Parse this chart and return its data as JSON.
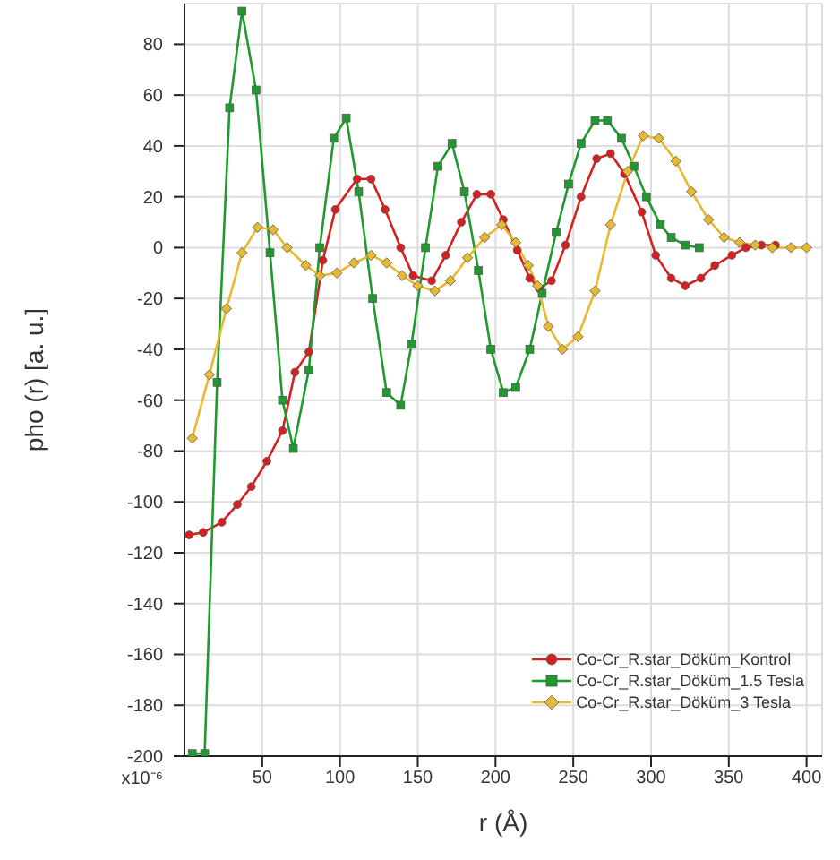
{
  "chart_data": {
    "type": "line",
    "xlabel": "r (Å)",
    "ylabel": "pho (r) [a. u.]",
    "xlim": [
      0,
      410
    ],
    "xticks": [
      50,
      100,
      150,
      200,
      250,
      300,
      350,
      400
    ],
    "annotations": [
      "x10⁻⁶"
    ],
    "ylim": [
      -200,
      96
    ],
    "yticks": [
      -200,
      -180,
      -160,
      -140,
      -120,
      -100,
      -80,
      -60,
      -40,
      -20,
      0,
      20,
      40,
      60,
      80
    ],
    "grid": true,
    "legend": "bottom right",
    "line_style": "solid",
    "series": [
      {
        "name": "Co-Cr_R.star_Döküm_Kontrol",
        "color": "#d62020",
        "marker": "circle",
        "x": [
          3,
          12,
          24,
          34,
          43,
          53,
          63,
          71,
          80,
          89,
          97,
          111,
          120,
          129,
          139,
          147,
          159,
          168,
          178,
          188,
          197,
          205,
          214,
          222,
          228,
          236,
          245,
          255,
          265,
          274,
          283,
          294,
          303,
          313,
          322,
          332,
          341,
          352,
          361,
          371,
          380
        ],
        "values": [
          -113,
          -112,
          -108,
          -101,
          -94,
          -84,
          -72,
          -49,
          -41,
          -5,
          15,
          27,
          27,
          15,
          0,
          -11,
          -13,
          -3,
          10,
          21,
          21,
          11,
          -1,
          -12,
          -16,
          -13,
          1,
          20,
          35,
          37,
          29,
          14,
          -3,
          -12,
          -15,
          -12,
          -7,
          -3,
          0,
          1,
          1
        ]
      },
      {
        "name": "Co-Cr_R.star_Döküm_1.5 Tesla",
        "color": "#1e9a2e",
        "marker": "square",
        "x": [
          5,
          13,
          21,
          29,
          37,
          46,
          55,
          63,
          70,
          80,
          87,
          96,
          104,
          112,
          121,
          130,
          139,
          146,
          155,
          163,
          172,
          180,
          189,
          197,
          205,
          213,
          222,
          230,
          239,
          247,
          255,
          264,
          272,
          281,
          289,
          297,
          306,
          313,
          322,
          331
        ],
        "values": [
          -199,
          -199,
          -53,
          55,
          93,
          62,
          -2,
          -60,
          -79,
          -48,
          0,
          43,
          51,
          22,
          -20,
          -57,
          -62,
          -38,
          0,
          32,
          41,
          22,
          -9,
          -40,
          -57,
          -55,
          -40,
          -18,
          6,
          25,
          41,
          50,
          50,
          43,
          32,
          20,
          9,
          4,
          1,
          0
        ]
      },
      {
        "name": "Co-Cr_R.star_Döküm_3 Tesla",
        "color": "#e8b830",
        "marker": "diamond",
        "x": [
          5,
          16,
          27,
          37,
          47,
          57,
          66,
          78,
          87,
          98,
          109,
          120,
          130,
          140,
          150,
          161,
          171,
          182,
          193,
          204,
          213,
          221,
          227,
          234,
          243,
          253,
          264,
          274,
          285,
          295,
          305,
          316,
          326,
          337,
          347,
          357,
          367,
          378,
          390,
          400
        ],
        "values": [
          -75,
          -50,
          -24,
          -2,
          8,
          7,
          0,
          -7,
          -11,
          -10,
          -6,
          -3,
          -6,
          -11,
          -15,
          -17,
          -13,
          -4,
          4,
          9,
          2,
          -7,
          -15,
          -31,
          -40,
          -35,
          -17,
          9,
          30,
          44,
          43,
          34,
          22,
          11,
          4,
          2,
          1,
          0,
          0,
          0
        ]
      }
    ]
  }
}
